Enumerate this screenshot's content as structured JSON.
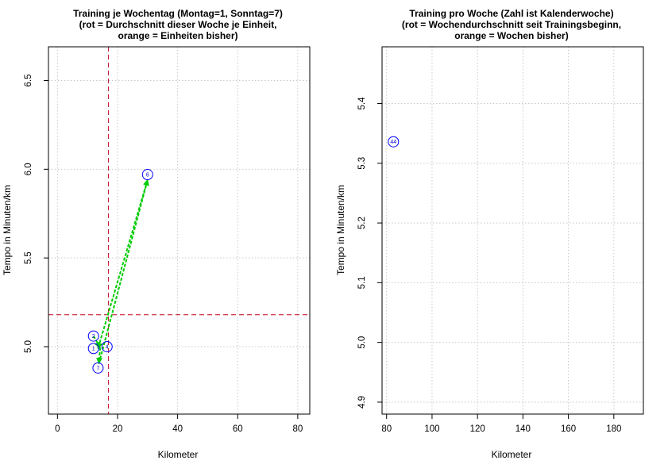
{
  "colors": {
    "point": "#0000ff",
    "point_label": "#0000cc",
    "arrow": "#00cc00",
    "week_avg_line": "#c00020",
    "grid": "#c8c8c8"
  },
  "chart_data": [
    {
      "type": "scatter",
      "title_lines": [
        "Training je Wochentag (Montag=1, Sonntag=7)",
        "(rot = Durchschnitt dieser Woche je Einheit,",
        "orange = Einheiten bisher)"
      ],
      "xlabel": "Kilometer",
      "ylabel": "Tempo in Minuten/km",
      "xlim": [
        -3,
        84
      ],
      "ylim": [
        4.62,
        6.69
      ],
      "xticks": [
        0,
        20,
        40,
        60,
        80
      ],
      "yticks": [
        5.0,
        5.5,
        6.0,
        6.5
      ],
      "ytick_labels": [
        "5.0",
        "5.5",
        "6.0",
        "6.5"
      ],
      "grid": true,
      "points": [
        {
          "label": "1",
          "x": 12.0,
          "y": 4.99
        },
        {
          "label": "2",
          "x": 12.0,
          "y": 5.06
        },
        {
          "label": "4",
          "x": 16.5,
          "y": 5.0
        },
        {
          "label": "6",
          "x": 30.0,
          "y": 5.97
        },
        {
          "label": "7",
          "x": 13.5,
          "y": 4.88
        }
      ],
      "arrows": [
        {
          "from": [
            12.0,
            5.06
          ],
          "to": [
            14.2,
            4.995
          ]
        },
        {
          "from": [
            14.2,
            4.995
          ],
          "to": [
            13.8,
            4.905
          ]
        },
        {
          "from": [
            13.8,
            4.905
          ],
          "to": [
            30.0,
            5.94
          ]
        },
        {
          "from": [
            30.0,
            5.94
          ],
          "to": [
            13.5,
            4.99
          ]
        }
      ],
      "avg_lines": {
        "x": 17.0,
        "y": 5.18
      }
    },
    {
      "type": "scatter",
      "title_lines": [
        "Training pro Woche (Zahl ist Kalenderwoche)",
        "(rot = Wochendurchschnitt seit Trainingsbeginn,",
        "orange = Wochen bisher)"
      ],
      "xlabel": "Kilometer",
      "ylabel": "Tempo in Minuten/km",
      "xlim": [
        78,
        193
      ],
      "ylim": [
        4.88,
        5.495
      ],
      "xticks": [
        80,
        100,
        120,
        140,
        160,
        180
      ],
      "yticks": [
        4.9,
        5.0,
        5.1,
        5.2,
        5.3,
        5.4
      ],
      "ytick_labels": [
        "4.9",
        "5.0",
        "5.1",
        "5.2",
        "5.3",
        "5.4"
      ],
      "grid": true,
      "points": [
        {
          "label": "44",
          "x": 83.0,
          "y": 5.336
        }
      ]
    }
  ]
}
